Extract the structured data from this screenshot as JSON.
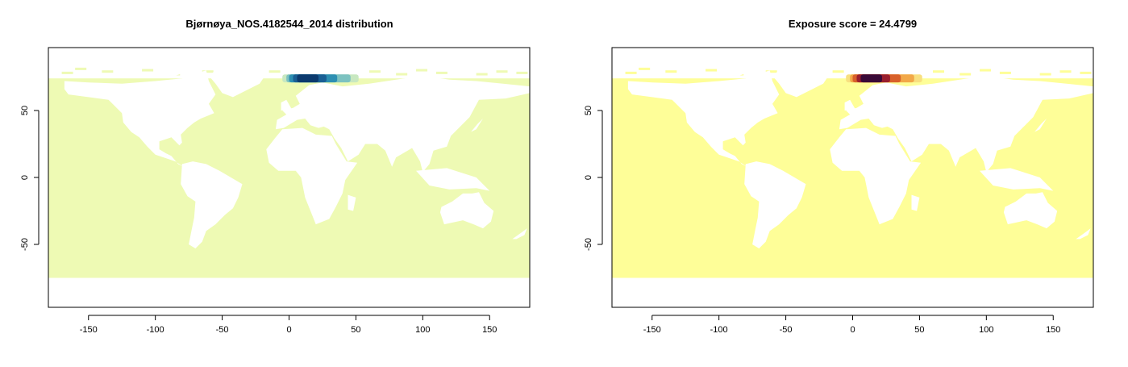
{
  "panels": [
    {
      "title": "Bjørnøya_NOS.4182544_2014 distribution",
      "ocean_color": "#eefab4",
      "hotspot_colors": [
        "#c8e8c0",
        "#7cc2c0",
        "#2d8fb2",
        "#1a5f94",
        "#0c3a6e"
      ]
    },
    {
      "title": "Exposure score = 24.4799",
      "ocean_color": "#fefe98",
      "hotspot_colors": [
        "#f8e080",
        "#f2a848",
        "#d8602a",
        "#9a1f2e",
        "#3a0a38"
      ]
    }
  ],
  "chart_data": {
    "type": "heatmap",
    "x_ticks": [
      -150,
      -100,
      -50,
      0,
      50,
      100,
      150
    ],
    "y_ticks": [
      50,
      0,
      -50
    ],
    "xlim": [
      -180,
      180
    ],
    "ylim": [
      -97,
      97
    ],
    "grid": false
  }
}
